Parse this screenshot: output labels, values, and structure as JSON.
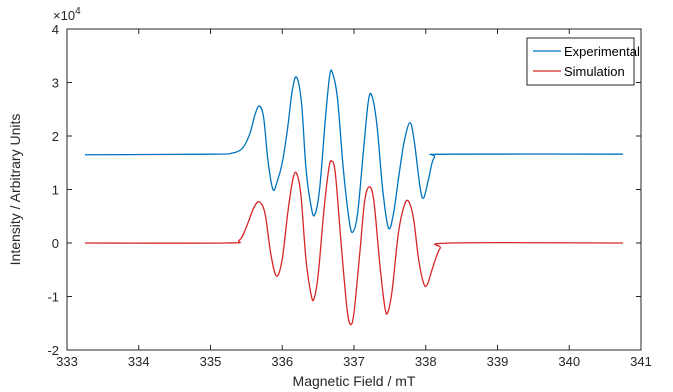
{
  "chart_data": {
    "type": "line",
    "title": "",
    "xlabel": "Magnetic Field / mT",
    "ylabel": "Intensity / Arbitrary Units",
    "y_exponent_label": "×10⁴",
    "y_exponent_power": 4,
    "xlim": [
      333,
      341
    ],
    "ylim": [
      -2,
      4
    ],
    "x_ticks": [
      333,
      334,
      335,
      336,
      337,
      338,
      339,
      340,
      341
    ],
    "y_ticks": [
      -2,
      -1,
      0,
      1,
      2,
      3,
      4
    ],
    "grid": false,
    "legend_position": "top-right",
    "series": [
      {
        "name": "Experimental",
        "color": "#0072BD",
        "points": [
          [
            333.25,
            1.65
          ],
          [
            335.0,
            1.66
          ],
          [
            335.3,
            1.68
          ],
          [
            335.45,
            1.78
          ],
          [
            335.55,
            2.05
          ],
          [
            335.62,
            2.4
          ],
          [
            335.68,
            2.56
          ],
          [
            335.74,
            2.35
          ],
          [
            335.8,
            1.55
          ],
          [
            335.87,
            1.0
          ],
          [
            335.93,
            1.15
          ],
          [
            336.0,
            1.5
          ],
          [
            336.07,
            2.1
          ],
          [
            336.14,
            2.85
          ],
          [
            336.2,
            3.1
          ],
          [
            336.27,
            2.6
          ],
          [
            336.33,
            1.4
          ],
          [
            336.4,
            0.7
          ],
          [
            336.45,
            0.52
          ],
          [
            336.52,
            1.0
          ],
          [
            336.6,
            2.3
          ],
          [
            336.66,
            3.12
          ],
          [
            336.7,
            3.18
          ],
          [
            336.77,
            2.7
          ],
          [
            336.85,
            1.4
          ],
          [
            336.93,
            0.45
          ],
          [
            336.98,
            0.2
          ],
          [
            337.05,
            0.55
          ],
          [
            337.13,
            1.7
          ],
          [
            337.2,
            2.65
          ],
          [
            337.25,
            2.75
          ],
          [
            337.32,
            2.2
          ],
          [
            337.4,
            1.0
          ],
          [
            337.48,
            0.28
          ],
          [
            337.55,
            0.55
          ],
          [
            337.63,
            1.3
          ],
          [
            337.7,
            1.9
          ],
          [
            337.78,
            2.25
          ],
          [
            337.84,
            1.9
          ],
          [
            337.92,
            1.05
          ],
          [
            337.97,
            0.84
          ],
          [
            338.04,
            1.2
          ],
          [
            338.12,
            1.6
          ],
          [
            338.3,
            1.66
          ],
          [
            340.75,
            1.66
          ]
        ]
      },
      {
        "name": "Simulation",
        "color": "#D62728",
        "points": [
          [
            333.25,
            0.0
          ],
          [
            335.2,
            0.0
          ],
          [
            335.4,
            0.05
          ],
          [
            335.5,
            0.3
          ],
          [
            335.6,
            0.65
          ],
          [
            335.68,
            0.77
          ],
          [
            335.76,
            0.55
          ],
          [
            335.84,
            -0.2
          ],
          [
            335.92,
            -0.62
          ],
          [
            336.0,
            -0.3
          ],
          [
            336.08,
            0.6
          ],
          [
            336.15,
            1.2
          ],
          [
            336.2,
            1.3
          ],
          [
            336.26,
            0.9
          ],
          [
            336.33,
            -0.3
          ],
          [
            336.4,
            -0.95
          ],
          [
            336.44,
            -1.05
          ],
          [
            336.5,
            -0.6
          ],
          [
            336.58,
            0.6
          ],
          [
            336.65,
            1.4
          ],
          [
            336.69,
            1.53
          ],
          [
            336.74,
            1.3
          ],
          [
            336.82,
            0.0
          ],
          [
            336.9,
            -1.2
          ],
          [
            336.95,
            -1.52
          ],
          [
            337.0,
            -1.3
          ],
          [
            337.08,
            -0.2
          ],
          [
            337.15,
            0.8
          ],
          [
            337.22,
            1.05
          ],
          [
            337.28,
            0.75
          ],
          [
            337.36,
            -0.4
          ],
          [
            337.43,
            -1.2
          ],
          [
            337.47,
            -1.3
          ],
          [
            337.53,
            -0.9
          ],
          [
            337.62,
            0.2
          ],
          [
            337.7,
            0.7
          ],
          [
            337.76,
            0.78
          ],
          [
            337.83,
            0.45
          ],
          [
            337.9,
            -0.3
          ],
          [
            337.97,
            -0.75
          ],
          [
            338.02,
            -0.78
          ],
          [
            338.1,
            -0.45
          ],
          [
            338.2,
            -0.1
          ],
          [
            338.35,
            0.0
          ],
          [
            340.75,
            0.0
          ]
        ]
      }
    ]
  }
}
